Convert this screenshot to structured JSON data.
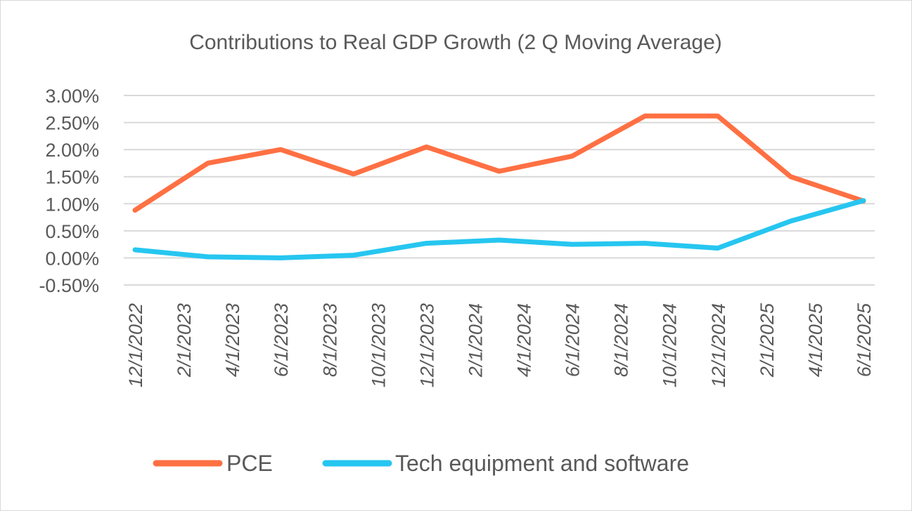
{
  "chart_data": {
    "type": "line",
    "title": "Contributions to Real GDP Growth (2 Q Moving Average)",
    "xlabel": "",
    "ylabel": "",
    "ylim": [
      -0.5,
      3.0
    ],
    "y_ticks": [
      3.0,
      2.5,
      2.0,
      1.5,
      1.0,
      0.5,
      0.0,
      -0.5
    ],
    "y_tick_labels": [
      "3.00%",
      "2.50%",
      "2.00%",
      "1.50%",
      "1.00%",
      "0.50%",
      "0.00%",
      "-0.50%"
    ],
    "x_tick_labels": [
      "12/1/2022",
      "2/1/2023",
      "4/1/2023",
      "6/1/2023",
      "8/1/2023",
      "10/1/2023",
      "12/1/2023",
      "2/1/2024",
      "4/1/2024",
      "6/1/2024",
      "8/1/2024",
      "10/1/2024",
      "12/1/2024",
      "2/1/2025",
      "4/1/2025",
      "6/1/2025"
    ],
    "x": [
      "12/1/2022",
      "3/1/2023",
      "6/1/2023",
      "9/1/2023",
      "12/1/2023",
      "3/1/2024",
      "6/1/2024",
      "9/1/2024",
      "12/1/2024",
      "3/1/2025",
      "6/1/2025"
    ],
    "series": [
      {
        "name": "PCE",
        "color": "#FF7043",
        "values": [
          0.88,
          1.75,
          2.0,
          1.55,
          2.05,
          1.6,
          1.88,
          2.62,
          2.62,
          1.5,
          1.05
        ]
      },
      {
        "name": "Tech equipment and software",
        "color": "#26C6F0",
        "values": [
          0.15,
          0.02,
          0.0,
          0.05,
          0.27,
          0.33,
          0.25,
          0.27,
          0.18,
          0.68,
          1.06
        ]
      }
    ],
    "grid": true,
    "legend_position": "bottom"
  }
}
